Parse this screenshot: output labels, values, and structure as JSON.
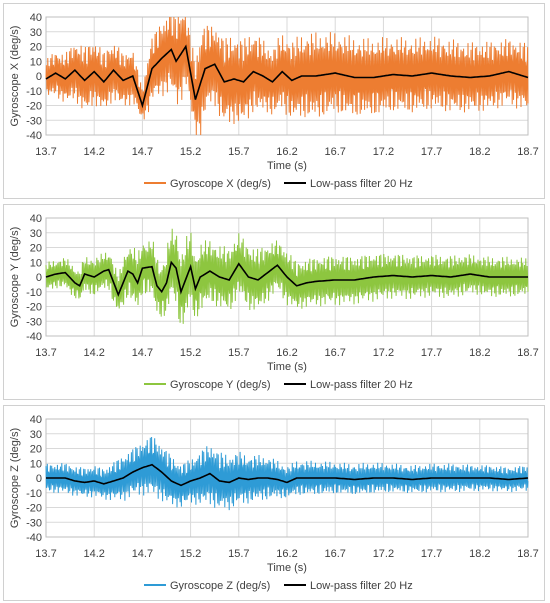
{
  "chart_data": [
    {
      "type": "line",
      "ylabel": "Gyroscope X (deg/s)",
      "xlabel": "Time (s)",
      "xlim": [
        13.7,
        18.7
      ],
      "ylim": [
        -40,
        40
      ],
      "x_ticks": [
        "13.7",
        "14.2",
        "14.7",
        "15.2",
        "15.7",
        "16.2",
        "16.7",
        "17.2",
        "17.7",
        "18.2",
        "18.7"
      ],
      "y_ticks": [
        "40",
        "30",
        "20",
        "10",
        "0",
        "-10",
        "-20",
        "-30",
        "-40"
      ],
      "grid": true,
      "legend_position": "bottom",
      "series": [
        {
          "name": "Gyroscope X (deg/s)",
          "color": "#ED7D31",
          "envelope": [
            [
              13.7,
              14
            ],
            [
              13.9,
              18
            ],
            [
              14.1,
              24
            ],
            [
              14.3,
              22
            ],
            [
              14.5,
              20
            ],
            [
              14.7,
              18
            ],
            [
              14.9,
              30
            ],
            [
              15.0,
              34
            ],
            [
              15.1,
              38
            ],
            [
              15.2,
              26
            ],
            [
              15.3,
              38
            ],
            [
              15.4,
              30
            ],
            [
              15.6,
              32
            ],
            [
              15.8,
              30
            ],
            [
              16.0,
              24
            ],
            [
              16.2,
              28
            ],
            [
              16.5,
              30
            ],
            [
              16.8,
              28
            ],
            [
              17.1,
              27
            ],
            [
              17.4,
              26
            ],
            [
              17.7,
              26
            ],
            [
              18.0,
              25
            ],
            [
              18.3,
              24
            ],
            [
              18.5,
              24
            ],
            [
              18.7,
              24
            ]
          ],
          "smooth": [
            [
              13.7,
              -2
            ],
            [
              13.8,
              2
            ],
            [
              13.9,
              -2
            ],
            [
              14.0,
              4
            ],
            [
              14.1,
              -3
            ],
            [
              14.2,
              3
            ],
            [
              14.3,
              -4
            ],
            [
              14.4,
              4
            ],
            [
              14.5,
              -3
            ],
            [
              14.6,
              0
            ],
            [
              14.7,
              -20
            ],
            [
              14.8,
              5
            ],
            [
              14.9,
              12
            ],
            [
              15.0,
              18
            ],
            [
              15.05,
              10
            ],
            [
              15.15,
              20
            ],
            [
              15.25,
              -16
            ],
            [
              15.35,
              5
            ],
            [
              15.45,
              8
            ],
            [
              15.55,
              -4
            ],
            [
              15.65,
              -2
            ],
            [
              15.75,
              -4
            ],
            [
              15.85,
              3
            ],
            [
              15.95,
              0
            ],
            [
              16.05,
              -4
            ],
            [
              16.15,
              3
            ],
            [
              16.25,
              -3
            ],
            [
              16.35,
              0
            ],
            [
              16.5,
              0
            ],
            [
              16.7,
              2
            ],
            [
              16.9,
              -1
            ],
            [
              17.1,
              -1
            ],
            [
              17.3,
              1
            ],
            [
              17.5,
              0
            ],
            [
              17.7,
              2
            ],
            [
              17.9,
              0
            ],
            [
              18.1,
              -1
            ],
            [
              18.3,
              0
            ],
            [
              18.5,
              3
            ],
            [
              18.7,
              -1
            ]
          ]
        },
        {
          "name": "Low-pass filter 20 Hz",
          "color": "#000000"
        }
      ]
    },
    {
      "type": "line",
      "ylabel": "Gyroscope Y (deg/s)",
      "xlabel": "Time (s)",
      "xlim": [
        13.7,
        18.7
      ],
      "ylim": [
        -40,
        40
      ],
      "x_ticks": [
        "13.7",
        "14.2",
        "14.7",
        "15.2",
        "15.7",
        "16.2",
        "16.7",
        "17.2",
        "17.7",
        "18.2",
        "18.7"
      ],
      "y_ticks": [
        "40",
        "30",
        "20",
        "10",
        "0",
        "-10",
        "-20",
        "-30",
        "-40"
      ],
      "grid": true,
      "legend_position": "bottom",
      "series": [
        {
          "name": "Gyroscope Y (deg/s)",
          "color": "#8DC63F",
          "envelope": [
            [
              13.7,
              10
            ],
            [
              14.0,
              12
            ],
            [
              14.3,
              14
            ],
            [
              14.6,
              20
            ],
            [
              14.9,
              22
            ],
            [
              15.1,
              30
            ],
            [
              15.3,
              24
            ],
            [
              15.5,
              22
            ],
            [
              15.7,
              24
            ],
            [
              15.9,
              22
            ],
            [
              16.1,
              20
            ],
            [
              16.4,
              18
            ],
            [
              16.7,
              18
            ],
            [
              17.0,
              17
            ],
            [
              17.3,
              16
            ],
            [
              17.6,
              15
            ],
            [
              17.9,
              15
            ],
            [
              18.2,
              14
            ],
            [
              18.5,
              14
            ],
            [
              18.7,
              13
            ]
          ],
          "smooth": [
            [
              13.7,
              0
            ],
            [
              13.8,
              2
            ],
            [
              13.9,
              3
            ],
            [
              14.0,
              -4
            ],
            [
              14.05,
              -6
            ],
            [
              14.1,
              2
            ],
            [
              14.2,
              0
            ],
            [
              14.3,
              4
            ],
            [
              14.35,
              5
            ],
            [
              14.45,
              -12
            ],
            [
              14.55,
              4
            ],
            [
              14.6,
              2
            ],
            [
              14.65,
              -4
            ],
            [
              14.7,
              6
            ],
            [
              14.8,
              7
            ],
            [
              14.85,
              -6
            ],
            [
              14.9,
              -10
            ],
            [
              14.95,
              -4
            ],
            [
              15.0,
              10
            ],
            [
              15.05,
              6
            ],
            [
              15.1,
              -10
            ],
            [
              15.2,
              7
            ],
            [
              15.25,
              -8
            ],
            [
              15.3,
              0
            ],
            [
              15.4,
              4
            ],
            [
              15.5,
              0
            ],
            [
              15.6,
              -2
            ],
            [
              15.7,
              9
            ],
            [
              15.8,
              0
            ],
            [
              15.9,
              -2
            ],
            [
              16.0,
              3
            ],
            [
              16.1,
              8
            ],
            [
              16.2,
              0
            ],
            [
              16.3,
              -6
            ],
            [
              16.4,
              -4
            ],
            [
              16.5,
              -3
            ],
            [
              16.7,
              -2
            ],
            [
              16.9,
              -2
            ],
            [
              17.1,
              0
            ],
            [
              17.3,
              1
            ],
            [
              17.5,
              0
            ],
            [
              17.7,
              1
            ],
            [
              17.9,
              0
            ],
            [
              18.1,
              2
            ],
            [
              18.3,
              0
            ],
            [
              18.5,
              0
            ],
            [
              18.7,
              0
            ]
          ]
        },
        {
          "name": "Low-pass filter 20 Hz",
          "color": "#000000"
        }
      ]
    },
    {
      "type": "line",
      "ylabel": "Gyroscope Z (deg/s)",
      "xlabel": "Time (s)",
      "xlim": [
        13.7,
        18.7
      ],
      "ylim": [
        -40,
        40
      ],
      "x_ticks": [
        "13.7",
        "14.2",
        "14.7",
        "15.2",
        "15.7",
        "16.2",
        "16.7",
        "17.2",
        "17.7",
        "18.2",
        "18.7"
      ],
      "y_ticks": [
        "40",
        "30",
        "20",
        "10",
        "0",
        "-10",
        "-20",
        "-30",
        "-40"
      ],
      "grid": true,
      "legend_position": "bottom",
      "series": [
        {
          "name": "Gyroscope Z (deg/s)",
          "color": "#2E9BD6",
          "envelope": [
            [
              13.7,
              10
            ],
            [
              14.0,
              11
            ],
            [
              14.3,
              12
            ],
            [
              14.6,
              18
            ],
            [
              14.8,
              24
            ],
            [
              15.0,
              18
            ],
            [
              15.2,
              16
            ],
            [
              15.4,
              22
            ],
            [
              15.6,
              20
            ],
            [
              15.8,
              17
            ],
            [
              16.0,
              15
            ],
            [
              16.2,
              12
            ],
            [
              16.4,
              12
            ],
            [
              16.7,
              11
            ],
            [
              17.0,
              11
            ],
            [
              17.3,
              10
            ],
            [
              17.6,
              10
            ],
            [
              17.9,
              10
            ],
            [
              18.2,
              9
            ],
            [
              18.5,
              9
            ],
            [
              18.7,
              9
            ]
          ],
          "smooth": [
            [
              13.7,
              0
            ],
            [
              13.9,
              0
            ],
            [
              14.0,
              -2
            ],
            [
              14.1,
              -3
            ],
            [
              14.2,
              -2
            ],
            [
              14.3,
              -4
            ],
            [
              14.4,
              -2
            ],
            [
              14.5,
              0
            ],
            [
              14.6,
              4
            ],
            [
              14.7,
              7
            ],
            [
              14.8,
              9
            ],
            [
              14.9,
              4
            ],
            [
              15.0,
              -2
            ],
            [
              15.1,
              -5
            ],
            [
              15.2,
              -2
            ],
            [
              15.3,
              0
            ],
            [
              15.4,
              3
            ],
            [
              15.5,
              -2
            ],
            [
              15.6,
              -3
            ],
            [
              15.7,
              0
            ],
            [
              15.8,
              -1
            ],
            [
              15.9,
              0
            ],
            [
              16.0,
              0
            ],
            [
              16.1,
              -1
            ],
            [
              16.2,
              -3
            ],
            [
              16.3,
              0
            ],
            [
              16.5,
              0
            ],
            [
              16.7,
              0
            ],
            [
              16.9,
              -1
            ],
            [
              17.1,
              0
            ],
            [
              17.3,
              0
            ],
            [
              17.5,
              -1
            ],
            [
              17.7,
              0
            ],
            [
              17.9,
              0
            ],
            [
              18.1,
              0
            ],
            [
              18.3,
              0
            ],
            [
              18.5,
              -1
            ],
            [
              18.7,
              0
            ]
          ]
        },
        {
          "name": "Low-pass filter 20 Hz",
          "color": "#000000"
        }
      ]
    }
  ]
}
